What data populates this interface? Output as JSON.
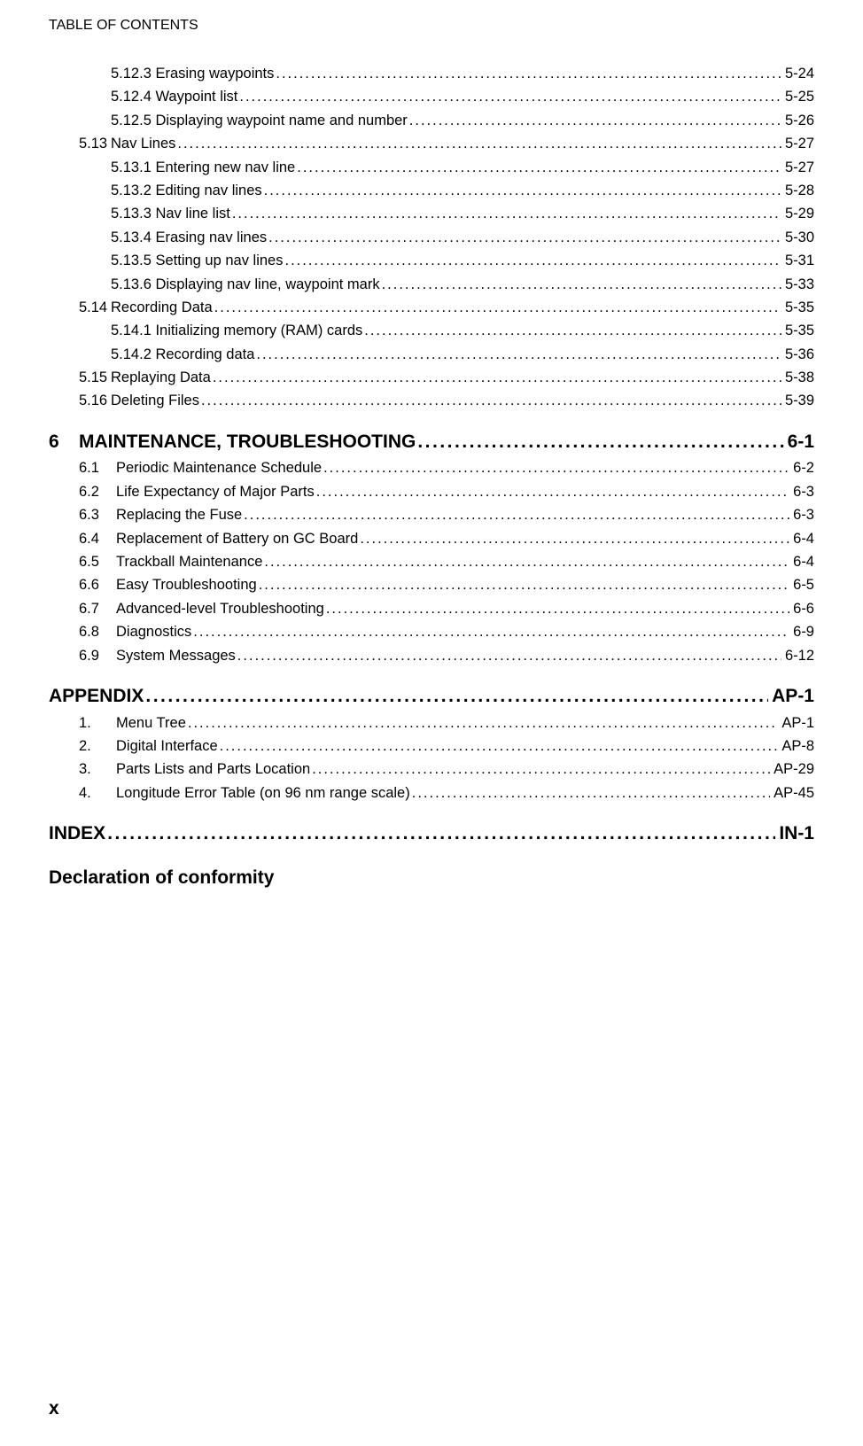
{
  "header": "TABLE OF CONTENTS",
  "section5_sub": [
    {
      "num": "5.12.3",
      "title": "Erasing waypoints",
      "page": "5-24"
    },
    {
      "num": "5.12.4",
      "title": "Waypoint list",
      "page": "5-25"
    },
    {
      "num": "5.12.5",
      "title": "Displaying waypoint name and number",
      "page": "5-26"
    }
  ],
  "section5_13": {
    "num": "5.13",
    "title": "Nav Lines",
    "page": "5-27"
  },
  "section5_13_sub": [
    {
      "num": "5.13.1",
      "title": "Entering new nav line",
      "page": "5-27"
    },
    {
      "num": "5.13.2",
      "title": "Editing nav lines",
      "page": "5-28"
    },
    {
      "num": "5.13.3",
      "title": "Nav line list",
      "page": "5-29"
    },
    {
      "num": "5.13.4",
      "title": "Erasing nav lines",
      "page": "5-30"
    },
    {
      "num": "5.13.5",
      "title": "Setting up nav lines",
      "page": "5-31"
    },
    {
      "num": "5.13.6",
      "title": "Displaying nav line, waypoint mark",
      "page": "5-33"
    }
  ],
  "section5_14": {
    "num": "5.14",
    "title": "Recording Data",
    "page": "5-35"
  },
  "section5_14_sub": [
    {
      "num": "5.14.1",
      "title": "Initializing memory (RAM) cards",
      "page": "5-35"
    },
    {
      "num": "5.14.2",
      "title": "Recording data",
      "page": "5-36"
    }
  ],
  "section5_rest": [
    {
      "num": "5.15",
      "title": "Replaying Data",
      "page": "5-38"
    },
    {
      "num": "5.16",
      "title": "Deleting Files",
      "page": "5-39"
    }
  ],
  "chapter6": {
    "num": "6",
    "title": "MAINTENANCE, TROUBLESHOOTING",
    "page": "6-1"
  },
  "chapter6_sub": [
    {
      "num": "6.1",
      "title": "Periodic Maintenance Schedule",
      "page": "6-2"
    },
    {
      "num": "6.2",
      "title": "Life Expectancy of Major Parts",
      "page": "6-3"
    },
    {
      "num": "6.3",
      "title": "Replacing the Fuse",
      "page": "6-3"
    },
    {
      "num": "6.4",
      "title": "Replacement of Battery on GC Board",
      "page": "6-4"
    },
    {
      "num": "6.5",
      "title": "Trackball Maintenance",
      "page": "6-4"
    },
    {
      "num": "6.6",
      "title": "Easy Troubleshooting",
      "page": "6-5"
    },
    {
      "num": "6.7",
      "title": "Advanced-level Troubleshooting",
      "page": "6-6"
    },
    {
      "num": "6.8",
      "title": "Diagnostics",
      "page": "6-9"
    },
    {
      "num": "6.9",
      "title": "System Messages",
      "page": "6-12"
    }
  ],
  "appendix": {
    "title": "APPENDIX",
    "page": "AP-1"
  },
  "appendix_sub": [
    {
      "num": "1.",
      "title": "Menu Tree",
      "page": "AP-1"
    },
    {
      "num": "2.",
      "title": "Digital Interface",
      "page": "AP-8"
    },
    {
      "num": "3.",
      "title": "Parts Lists and Parts Location",
      "page": "AP-29"
    },
    {
      "num": "4.",
      "title": "Longitude Error Table (on 96 nm range scale)",
      "page": "AP-45"
    }
  ],
  "index": {
    "title": "INDEX",
    "page": "IN-1"
  },
  "declaration": "Declaration of conformity",
  "footer": "x"
}
